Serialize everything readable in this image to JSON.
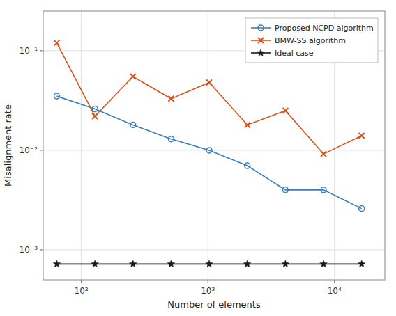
{
  "chart_data": {
    "type": "line",
    "log": true,
    "grid": true,
    "legend": "upper right",
    "xlabel": "Number of elements",
    "ylabel": "Misalignment rate",
    "x": [
      64,
      128,
      256,
      512,
      1024,
      2048,
      4096,
      8192,
      16384
    ],
    "series": [
      {
        "name": "Proposed NCPD algorithm",
        "color": "#3a7ebd",
        "marker": "circle",
        "line_style": "solid",
        "values": [
          0.035,
          0.026,
          0.018,
          0.013,
          0.01,
          0.007,
          0.004,
          0.004,
          0.0026
        ]
      },
      {
        "name": "BMW-SS algorithm",
        "color": "#d4541a",
        "marker": "x",
        "line_style": "solid",
        "values": [
          0.12,
          0.022,
          0.055,
          0.033,
          0.048,
          0.018,
          0.025,
          0.0092,
          0.014
        ]
      },
      {
        "name": "Ideal case",
        "color": "#1a1a1a",
        "marker": "star",
        "line_style": "solid",
        "values": [
          0.00072,
          0.00072,
          0.00072,
          0.00072,
          0.00072,
          0.00072,
          0.00072,
          0.00072,
          0.00072
        ]
      }
    ],
    "xlim": [
      50,
      25000
    ],
    "ylim": [
      0.0005,
      0.25
    ],
    "xticks": [
      {
        "value": 100,
        "label": "10²"
      },
      {
        "value": 1000,
        "label": "10³"
      },
      {
        "value": 10000,
        "label": "10⁴"
      }
    ],
    "yticks": [
      {
        "value": 0.001,
        "label": "10⁻³"
      },
      {
        "value": 0.01,
        "label": "10⁻²"
      },
      {
        "value": 0.1,
        "label": "10⁻¹"
      }
    ]
  }
}
